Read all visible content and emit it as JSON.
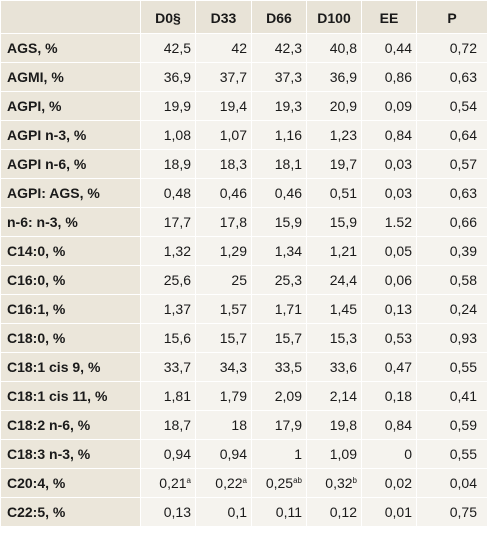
{
  "header": [
    "",
    "D0§",
    "D33",
    "D66",
    "D100",
    "EE",
    "P"
  ],
  "rows": [
    {
      "label": "AGS, %",
      "cells": [
        {
          "v": "42,5",
          "s": ""
        },
        {
          "v": "42",
          "s": ""
        },
        {
          "v": "42,3",
          "s": ""
        },
        {
          "v": "40,8",
          "s": ""
        },
        {
          "v": "0,44",
          "s": ""
        },
        {
          "v": "0,72",
          "s": ""
        }
      ]
    },
    {
      "label": "AGMI, %",
      "cells": [
        {
          "v": "36,9",
          "s": ""
        },
        {
          "v": "37,7",
          "s": ""
        },
        {
          "v": "37,3",
          "s": ""
        },
        {
          "v": "36,9",
          "s": ""
        },
        {
          "v": "0,86",
          "s": ""
        },
        {
          "v": "0,63",
          "s": ""
        }
      ]
    },
    {
      "label": "AGPI, %",
      "cells": [
        {
          "v": "19,9",
          "s": ""
        },
        {
          "v": "19,4",
          "s": ""
        },
        {
          "v": "19,3",
          "s": ""
        },
        {
          "v": "20,9",
          "s": ""
        },
        {
          "v": "0,09",
          "s": ""
        },
        {
          "v": "0,54",
          "s": ""
        }
      ]
    },
    {
      "label": "AGPI n-3, %",
      "cells": [
        {
          "v": "1,08",
          "s": ""
        },
        {
          "v": "1,07",
          "s": ""
        },
        {
          "v": "1,16",
          "s": ""
        },
        {
          "v": "1,23",
          "s": ""
        },
        {
          "v": "0,84",
          "s": ""
        },
        {
          "v": "0,64",
          "s": ""
        }
      ]
    },
    {
      "label": "AGPI n-6, %",
      "cells": [
        {
          "v": "18,9",
          "s": ""
        },
        {
          "v": "18,3",
          "s": ""
        },
        {
          "v": "18,1",
          "s": ""
        },
        {
          "v": "19,7",
          "s": ""
        },
        {
          "v": "0,03",
          "s": ""
        },
        {
          "v": "0,57",
          "s": ""
        }
      ]
    },
    {
      "label": "AGPI: AGS, %",
      "cells": [
        {
          "v": "0,48",
          "s": ""
        },
        {
          "v": "0,46",
          "s": ""
        },
        {
          "v": "0,46",
          "s": ""
        },
        {
          "v": "0,51",
          "s": ""
        },
        {
          "v": "0,03",
          "s": ""
        },
        {
          "v": "0,63",
          "s": ""
        }
      ]
    },
    {
      "label": "n-6: n-3, %",
      "cells": [
        {
          "v": "17,7",
          "s": ""
        },
        {
          "v": "17,8",
          "s": ""
        },
        {
          "v": "15,9",
          "s": ""
        },
        {
          "v": "15,9",
          "s": ""
        },
        {
          "v": "1.52",
          "s": ""
        },
        {
          "v": "0,66",
          "s": ""
        }
      ]
    },
    {
      "label": "C14:0, %",
      "cells": [
        {
          "v": "1,32",
          "s": ""
        },
        {
          "v": "1,29",
          "s": ""
        },
        {
          "v": "1,34",
          "s": ""
        },
        {
          "v": "1,21",
          "s": ""
        },
        {
          "v": "0,05",
          "s": ""
        },
        {
          "v": "0,39",
          "s": ""
        }
      ]
    },
    {
      "label": "C16:0, %",
      "cells": [
        {
          "v": "25,6",
          "s": ""
        },
        {
          "v": "25",
          "s": ""
        },
        {
          "v": "25,3",
          "s": ""
        },
        {
          "v": "24,4",
          "s": ""
        },
        {
          "v": "0,06",
          "s": ""
        },
        {
          "v": "0,58",
          "s": ""
        }
      ]
    },
    {
      "label": "C16:1, %",
      "cells": [
        {
          "v": "1,37",
          "s": ""
        },
        {
          "v": "1,57",
          "s": ""
        },
        {
          "v": "1,71",
          "s": ""
        },
        {
          "v": "1,45",
          "s": ""
        },
        {
          "v": "0,13",
          "s": ""
        },
        {
          "v": "0,24",
          "s": ""
        }
      ]
    },
    {
      "label": "C18:0, %",
      "cells": [
        {
          "v": "15,6",
          "s": ""
        },
        {
          "v": "15,7",
          "s": ""
        },
        {
          "v": "15,7",
          "s": ""
        },
        {
          "v": "15,3",
          "s": ""
        },
        {
          "v": "0,53",
          "s": ""
        },
        {
          "v": "0,93",
          "s": ""
        }
      ]
    },
    {
      "label": "C18:1 cis 9, %",
      "cells": [
        {
          "v": "33,7",
          "s": ""
        },
        {
          "v": "34,3",
          "s": ""
        },
        {
          "v": "33,5",
          "s": ""
        },
        {
          "v": "33,6",
          "s": ""
        },
        {
          "v": "0,47",
          "s": ""
        },
        {
          "v": "0,55",
          "s": ""
        }
      ]
    },
    {
      "label": "C18:1 cis 11, %",
      "cells": [
        {
          "v": "1,81",
          "s": ""
        },
        {
          "v": "1,79",
          "s": ""
        },
        {
          "v": "2,09",
          "s": ""
        },
        {
          "v": "2,14",
          "s": ""
        },
        {
          "v": "0,18",
          "s": ""
        },
        {
          "v": "0,41",
          "s": ""
        }
      ]
    },
    {
      "label": "C18:2 n-6, %",
      "cells": [
        {
          "v": "18,7",
          "s": ""
        },
        {
          "v": "18",
          "s": ""
        },
        {
          "v": "17,9",
          "s": ""
        },
        {
          "v": "19,8",
          "s": ""
        },
        {
          "v": "0,84",
          "s": ""
        },
        {
          "v": "0,59",
          "s": ""
        }
      ]
    },
    {
      "label": "C18:3 n-3, %",
      "cells": [
        {
          "v": "0,94",
          "s": ""
        },
        {
          "v": "0,94",
          "s": ""
        },
        {
          "v": "1",
          "s": ""
        },
        {
          "v": "1,09",
          "s": ""
        },
        {
          "v": "0",
          "s": ""
        },
        {
          "v": "0,55",
          "s": ""
        }
      ]
    },
    {
      "label": "C20:4, %",
      "cells": [
        {
          "v": "0,21",
          "s": "a"
        },
        {
          "v": "0,22",
          "s": "a"
        },
        {
          "v": "0,25",
          "s": "ab"
        },
        {
          "v": "0,32",
          "s": "b"
        },
        {
          "v": "0,02",
          "s": ""
        },
        {
          "v": "0,04",
          "s": ""
        }
      ]
    },
    {
      "label": "C22:5, %",
      "cells": [
        {
          "v": "0,13",
          "s": ""
        },
        {
          "v": "0,1",
          "s": ""
        },
        {
          "v": "0,11",
          "s": ""
        },
        {
          "v": "0,12",
          "s": ""
        },
        {
          "v": "0,01",
          "s": ""
        },
        {
          "v": "0,75",
          "s": ""
        }
      ]
    }
  ]
}
